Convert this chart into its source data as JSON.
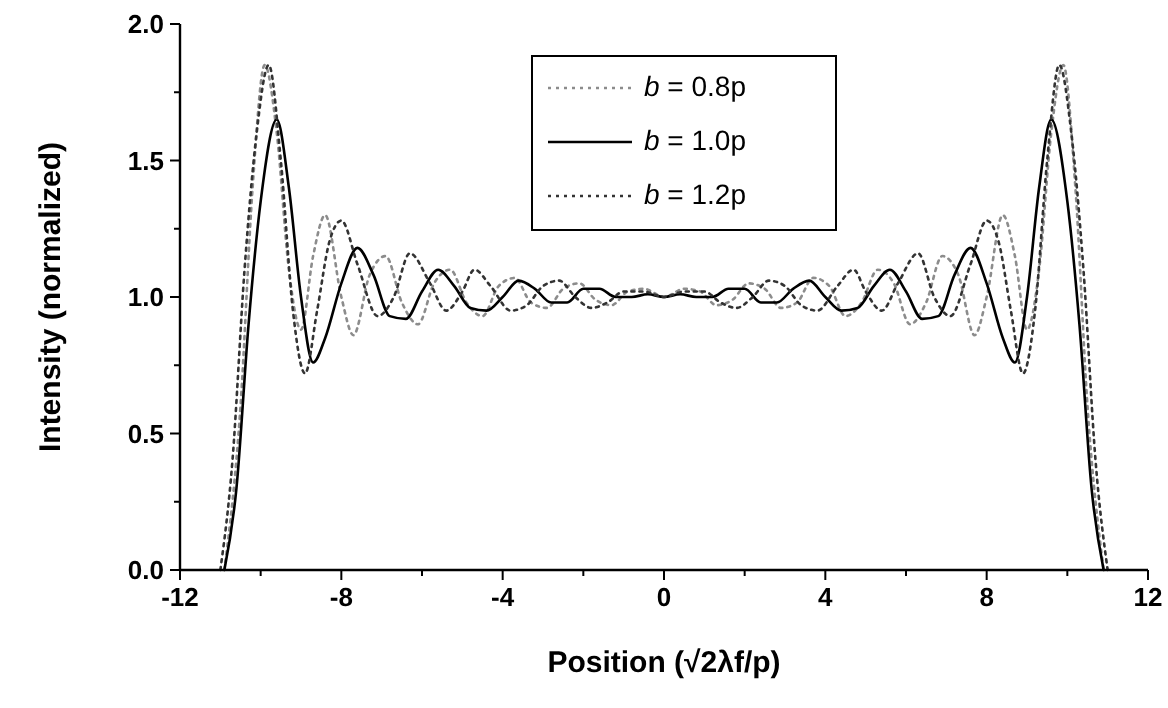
{
  "chart_data": {
    "type": "line",
    "xlabel": "Position (√2λf/p)",
    "ylabel": "Intensity (normalized)",
    "xlim": [
      -12,
      12
    ],
    "xticks": [
      -12,
      {
        "value": -10,
        "label": null
      },
      -8,
      {
        "value": -6,
        "label": null
      },
      -4,
      {
        "value": -2,
        "label": null
      },
      0,
      {
        "value": 2,
        "label": null
      },
      4,
      {
        "value": 6,
        "label": null
      },
      8,
      {
        "value": 10,
        "label": null
      },
      12
    ],
    "ylim": [
      0,
      2
    ],
    "yticks": [
      {
        "value": 0,
        "label": "0.0"
      },
      {
        "value": 0.25,
        "label": null
      },
      {
        "value": 0.5,
        "label": "0.5"
      },
      {
        "value": 0.75,
        "label": null
      },
      {
        "value": 1,
        "label": "1.0"
      },
      {
        "value": 1.25,
        "label": null
      },
      {
        "value": 1.5,
        "label": "1.5"
      },
      {
        "value": 1.75,
        "label": null
      },
      {
        "value": 2,
        "label": "2.0"
      }
    ],
    "grid": false,
    "legend": "top",
    "marker": "none",
    "series": [
      {
        "name": "b = 0.8p",
        "color": "#8c8c8c",
        "line_style": "dotted",
        "x": [
          -10.9,
          -10.5,
          -10.2,
          -9.9,
          -9.6,
          -9.3,
          -9.0,
          -8.7,
          -8.4,
          -8.0,
          -7.7,
          -7.3,
          -6.9,
          -6.5,
          -6.1,
          -5.7,
          -5.3,
          -4.9,
          -4.5,
          -4.1,
          -3.7,
          -3.3,
          -2.9,
          -2.5,
          -2.1,
          -1.7,
          -1.3,
          -0.9,
          -0.5,
          0,
          0.5,
          0.9,
          1.3,
          1.7,
          2.1,
          2.5,
          2.9,
          3.3,
          3.7,
          4.1,
          4.5,
          4.9,
          5.3,
          5.7,
          6.1,
          6.5,
          6.9,
          7.3,
          7.7,
          8.0,
          8.4,
          8.7,
          9.0,
          9.3,
          9.6,
          9.9,
          10.2,
          10.5,
          10.9
        ],
        "values": [
          0,
          0.6,
          1.4,
          1.85,
          1.6,
          1.1,
          0.88,
          1.15,
          1.3,
          1.0,
          0.86,
          1.08,
          1.15,
          0.98,
          0.9,
          1.05,
          1.1,
          0.98,
          0.93,
          1.04,
          1.07,
          0.98,
          0.96,
          1.03,
          1.05,
          0.99,
          0.97,
          1.02,
          1.03,
          1.0,
          1.03,
          1.02,
          0.97,
          0.99,
          1.05,
          1.03,
          0.96,
          0.98,
          1.07,
          1.04,
          0.93,
          0.98,
          1.1,
          1.05,
          0.9,
          0.98,
          1.15,
          1.08,
          0.86,
          1.0,
          1.3,
          1.15,
          0.88,
          1.1,
          1.6,
          1.85,
          1.4,
          0.6,
          0
        ]
      },
      {
        "name": "b = 1.0p",
        "color": "#000000",
        "line_style": "solid",
        "x": [
          -10.9,
          -10.6,
          -10.3,
          -10.0,
          -9.6,
          -9.3,
          -9.0,
          -8.7,
          -8.4,
          -8.0,
          -7.6,
          -7.2,
          -6.8,
          -6.4,
          -6.0,
          -5.6,
          -5.2,
          -4.8,
          -4.4,
          -4.0,
          -3.6,
          -3.2,
          -2.8,
          -2.4,
          -2.0,
          -1.6,
          -1.2,
          -0.8,
          -0.4,
          0,
          0.4,
          0.8,
          1.2,
          1.6,
          2.0,
          2.4,
          2.8,
          3.2,
          3.6,
          4.0,
          4.4,
          4.8,
          5.2,
          5.6,
          6.0,
          6.4,
          6.8,
          7.2,
          7.6,
          8.0,
          8.4,
          8.7,
          9.0,
          9.3,
          9.6,
          10.0,
          10.3,
          10.6,
          10.9
        ],
        "values": [
          0,
          0.3,
          0.9,
          1.35,
          1.65,
          1.4,
          1.0,
          0.76,
          0.85,
          1.05,
          1.18,
          1.08,
          0.93,
          0.92,
          1.02,
          1.1,
          1.04,
          0.96,
          0.95,
          1.0,
          1.06,
          1.03,
          0.98,
          0.98,
          1.03,
          1.03,
          1.0,
          1.0,
          1.01,
          1.0,
          1.01,
          1.0,
          1.0,
          1.03,
          1.03,
          0.98,
          0.98,
          1.03,
          1.06,
          1.0,
          0.95,
          0.96,
          1.04,
          1.1,
          1.02,
          0.92,
          0.93,
          1.08,
          1.18,
          1.05,
          0.85,
          0.76,
          1.0,
          1.4,
          1.65,
          1.35,
          0.9,
          0.3,
          0
        ]
      },
      {
        "name": "b = 1.2p",
        "color": "#333333",
        "line_style": "dotted",
        "x": [
          -11.0,
          -10.7,
          -10.4,
          -10.1,
          -9.8,
          -9.5,
          -9.2,
          -8.9,
          -8.6,
          -8.3,
          -8.0,
          -7.6,
          -7.1,
          -6.7,
          -6.3,
          -5.8,
          -5.4,
          -5.0,
          -4.7,
          -4.3,
          -3.8,
          -3.4,
          -3.0,
          -2.6,
          -2.2,
          -1.8,
          -1.4,
          -1.0,
          -0.5,
          0,
          0.5,
          1.0,
          1.4,
          1.8,
          2.2,
          2.6,
          3.0,
          3.4,
          3.8,
          4.3,
          4.7,
          5.0,
          5.4,
          5.8,
          6.3,
          6.7,
          7.1,
          7.6,
          8.0,
          8.3,
          8.6,
          8.9,
          9.2,
          9.5,
          9.8,
          10.1,
          10.4,
          10.7,
          11.0
        ],
        "values": [
          0,
          0.4,
          1.1,
          1.6,
          1.85,
          1.5,
          0.95,
          0.72,
          0.95,
          1.2,
          1.28,
          1.12,
          0.93,
          1.0,
          1.16,
          1.05,
          0.95,
          1.02,
          1.1,
          1.04,
          0.95,
          0.97,
          1.04,
          1.06,
          1.0,
          0.96,
          0.98,
          1.02,
          1.02,
          1.0,
          1.02,
          1.02,
          0.98,
          0.96,
          1.0,
          1.06,
          1.04,
          0.97,
          0.95,
          1.04,
          1.1,
          1.02,
          0.95,
          1.05,
          1.16,
          1.0,
          0.93,
          1.12,
          1.28,
          1.2,
          0.95,
          0.72,
          0.95,
          1.5,
          1.85,
          1.6,
          1.1,
          0.4,
          0
        ]
      }
    ]
  }
}
